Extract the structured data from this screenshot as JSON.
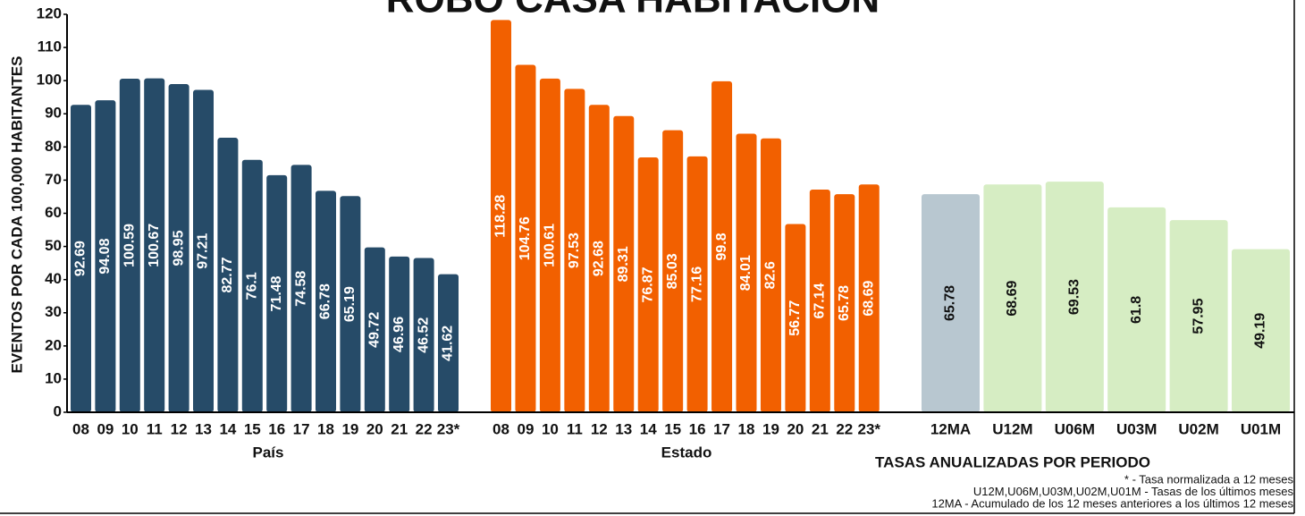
{
  "chart_data": {
    "type": "bar",
    "title": "ROBO CASA HABITACION",
    "ylabel": "EVENTOS POR CADA 100,000 HABITANTES",
    "ylim": [
      0,
      120
    ],
    "yticks": [
      0,
      10,
      20,
      30,
      40,
      50,
      60,
      70,
      80,
      90,
      100,
      110,
      120
    ],
    "groups": [
      {
        "name": "País",
        "color": "#264b68",
        "label_color": "#ffffff",
        "categories": [
          "08",
          "09",
          "10",
          "11",
          "12",
          "13",
          "14",
          "15",
          "16",
          "17",
          "18",
          "19",
          "20",
          "21",
          "22",
          "23*"
        ],
        "values": [
          92.69,
          94.08,
          100.59,
          100.67,
          98.95,
          97.21,
          82.77,
          76.1,
          71.48,
          74.58,
          66.78,
          65.19,
          49.72,
          46.96,
          46.52,
          41.62
        ]
      },
      {
        "name": "Estado",
        "color": "#f26000",
        "label_color": "#ffffff",
        "categories": [
          "08",
          "09",
          "10",
          "11",
          "12",
          "13",
          "14",
          "15",
          "16",
          "17",
          "18",
          "19",
          "20",
          "21",
          "22",
          "23*"
        ],
        "values": [
          118.28,
          104.76,
          100.61,
          97.53,
          92.68,
          89.31,
          76.87,
          85.03,
          77.16,
          99.8,
          84.01,
          82.6,
          56.77,
          67.14,
          65.78,
          68.69
        ]
      },
      {
        "name": "TASAS ANUALIZADAS POR PERIODO",
        "colors": [
          "#b8c7d0",
          "#d6edc3",
          "#d6edc3",
          "#d6edc3",
          "#d6edc3",
          "#d6edc3"
        ],
        "label_color": "#111111",
        "categories": [
          "12MA",
          "U12M",
          "U06M",
          "U03M",
          "U02M",
          "U01M"
        ],
        "values": [
          65.78,
          68.69,
          69.53,
          61.8,
          57.95,
          49.19
        ]
      }
    ],
    "notes": [
      "*        - Tasa normalizada a 12 meses",
      "U12M,U06M,U03M,U02M,U01M - Tasas de los últimos meses",
      "12MA   - Acumulado de los 12 meses anteriores a los últimos 12 meses"
    ]
  }
}
